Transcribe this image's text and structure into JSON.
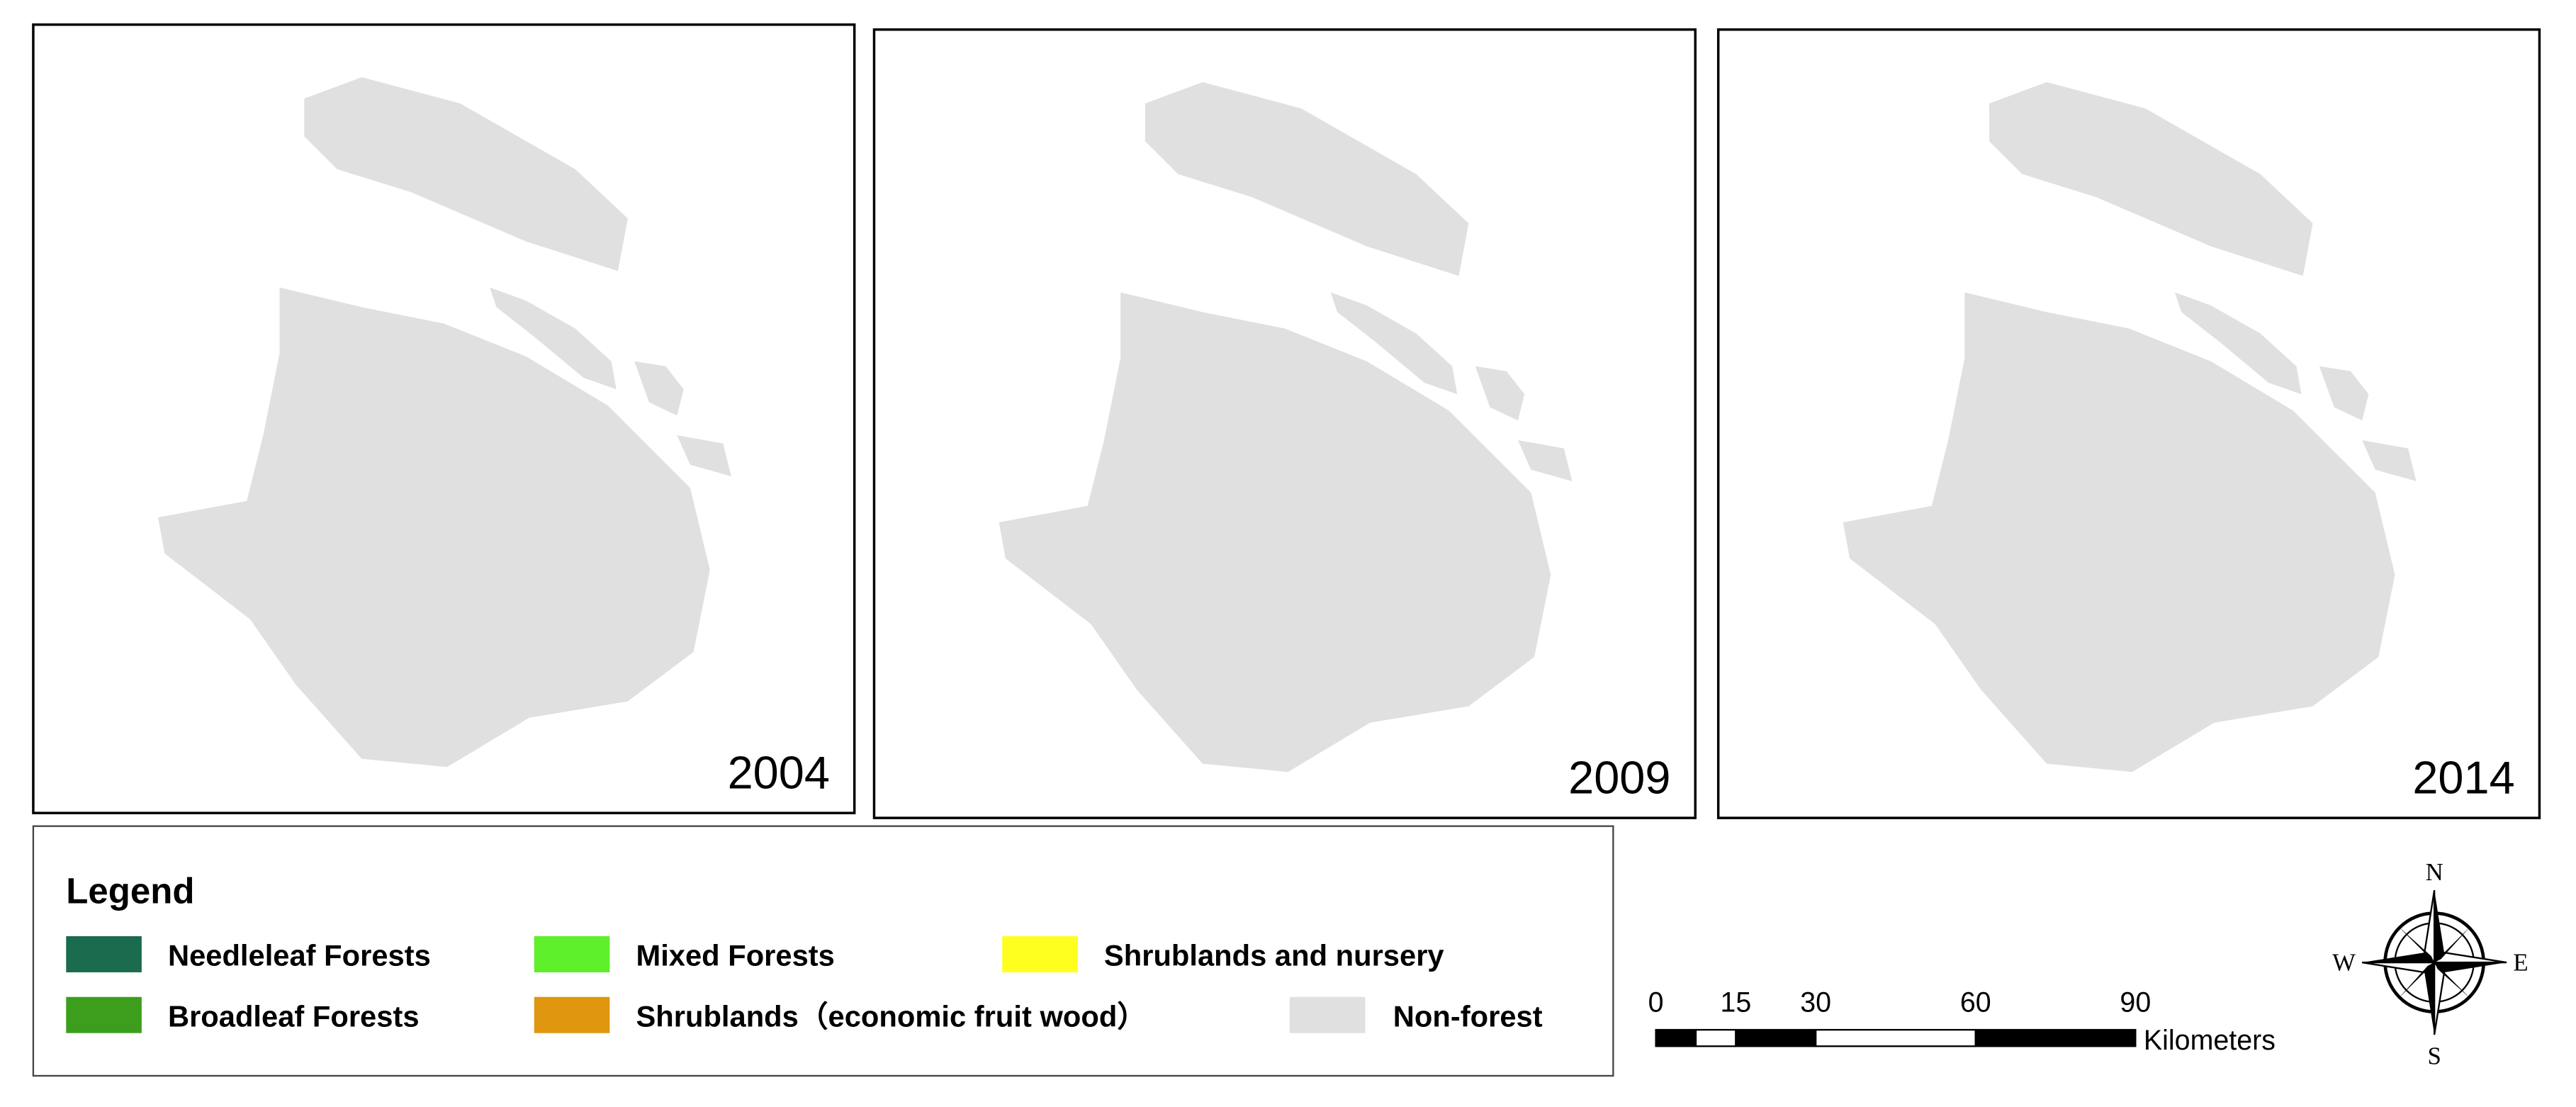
{
  "panels": [
    {
      "year": "2004"
    },
    {
      "year": "2009"
    },
    {
      "year": "2014"
    }
  ],
  "legend": {
    "title": "Legend",
    "items": [
      {
        "label": "Needleleaf Forests",
        "color": "#1b6b4f"
      },
      {
        "label": "Broadleaf Forests",
        "color": "#3c9e1c"
      },
      {
        "label": "Mixed Forests",
        "color": "#5df02b"
      },
      {
        "label": "Shrublands（economic fruit wood）",
        "color": "#e0960f"
      },
      {
        "label": "Shrublands and nursery",
        "color": "#ffff1f"
      },
      {
        "label": "Non-forest",
        "color": "#e0e0e0"
      }
    ]
  },
  "scale_bar": {
    "ticks": [
      0,
      15,
      30,
      60,
      90
    ],
    "unit": "Kilometers"
  },
  "compass": {
    "n": "N",
    "s": "S",
    "e": "E",
    "w": "W"
  }
}
